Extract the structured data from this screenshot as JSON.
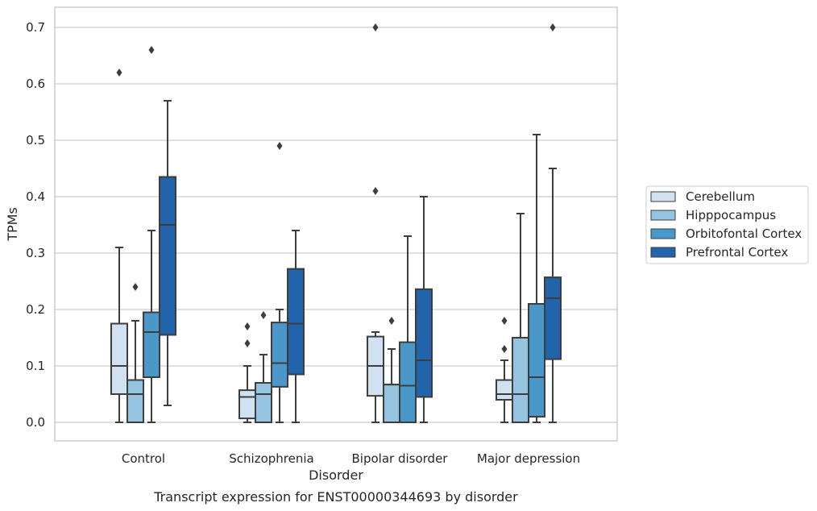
{
  "chart_data": {
    "type": "box",
    "title": "Transcript expression for ENST00000344693 by disorder",
    "xlabel": "Disorder",
    "ylabel": "TPMs",
    "ylim": [
      -0.035,
      0.735
    ],
    "yticks": [
      "0.0",
      "0.1",
      "0.2",
      "0.3",
      "0.4",
      "0.5",
      "0.6",
      "0.7"
    ],
    "grid": true,
    "legend_position": "right",
    "categories": [
      "Control",
      "Schizophrenia",
      "Bipolar disorder",
      "Major depression"
    ],
    "series": [
      {
        "name": "Cerebellum",
        "color": "#d0e1f2",
        "boxes": [
          {
            "whislo": 0.0,
            "q1": 0.05,
            "med": 0.1,
            "q3": 0.175,
            "whishi": 0.31,
            "fliers": [
              0.62
            ]
          },
          {
            "whislo": 0.0,
            "q1": 0.007,
            "med": 0.045,
            "q3": 0.057,
            "whishi": 0.1,
            "fliers": [
              0.14,
              0.17
            ]
          },
          {
            "whislo": 0.0,
            "q1": 0.047,
            "med": 0.1,
            "q3": 0.152,
            "whishi": 0.16,
            "fliers": [
              0.41,
              0.7
            ]
          },
          {
            "whislo": 0.0,
            "q1": 0.04,
            "med": 0.05,
            "q3": 0.075,
            "whishi": 0.11,
            "fliers": [
              0.13,
              0.18
            ]
          }
        ]
      },
      {
        "name": "Hipppocampus",
        "color": "#94c4df",
        "boxes": [
          {
            "whislo": 0.0,
            "q1": 0.0,
            "med": 0.05,
            "q3": 0.075,
            "whishi": 0.18,
            "fliers": [
              0.24
            ]
          },
          {
            "whislo": 0.0,
            "q1": 0.0,
            "med": 0.05,
            "q3": 0.07,
            "whishi": 0.12,
            "fliers": [
              0.19
            ]
          },
          {
            "whislo": 0.0,
            "q1": 0.0,
            "med": 0.067,
            "q3": 0.067,
            "whishi": 0.13,
            "fliers": [
              0.18
            ]
          },
          {
            "whislo": 0.0,
            "q1": 0.0,
            "med": 0.05,
            "q3": 0.15,
            "whishi": 0.37,
            "fliers": []
          }
        ]
      },
      {
        "name": "Orbitofontal Cortex",
        "color": "#4a98c9",
        "boxes": [
          {
            "whislo": 0.0,
            "q1": 0.08,
            "med": 0.16,
            "q3": 0.195,
            "whishi": 0.34,
            "fliers": [
              0.66
            ]
          },
          {
            "whislo": 0.0,
            "q1": 0.063,
            "med": 0.105,
            "q3": 0.177,
            "whishi": 0.2,
            "fliers": [
              0.49
            ]
          },
          {
            "whislo": 0.0,
            "q1": 0.0,
            "med": 0.065,
            "q3": 0.142,
            "whishi": 0.33,
            "fliers": []
          },
          {
            "whislo": 0.0,
            "q1": 0.01,
            "med": 0.08,
            "q3": 0.21,
            "whishi": 0.51,
            "fliers": []
          }
        ]
      },
      {
        "name": "Prefrontal Cortex",
        "color": "#2164ab",
        "boxes": [
          {
            "whislo": 0.03,
            "q1": 0.155,
            "med": 0.35,
            "q3": 0.435,
            "whishi": 0.57,
            "fliers": []
          },
          {
            "whislo": 0.0,
            "q1": 0.085,
            "med": 0.175,
            "q3": 0.272,
            "whishi": 0.34,
            "fliers": []
          },
          {
            "whislo": 0.0,
            "q1": 0.045,
            "med": 0.11,
            "q3": 0.236,
            "whishi": 0.4,
            "fliers": []
          },
          {
            "whislo": 0.0,
            "q1": 0.112,
            "med": 0.22,
            "q3": 0.257,
            "whishi": 0.45,
            "fliers": [
              0.7
            ]
          }
        ]
      }
    ]
  }
}
